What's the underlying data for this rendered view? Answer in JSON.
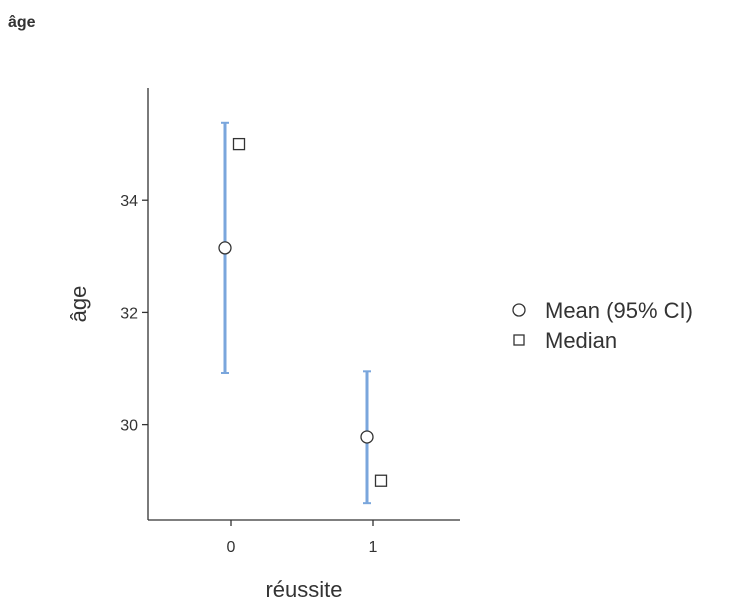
{
  "title": "âge",
  "chart_data": {
    "type": "scatter",
    "xlabel": "réussite",
    "ylabel": "âge",
    "categories": [
      "0",
      "1"
    ],
    "ylim": [
      28.3,
      36.0
    ],
    "yticks": [
      "30",
      "32",
      "34"
    ],
    "series": [
      {
        "name": "Mean (95% CI)",
        "marker": "circle",
        "values": [
          33.15,
          29.78
        ],
        "ci_lower": [
          30.92,
          28.6
        ],
        "ci_upper": [
          35.38,
          30.95
        ]
      },
      {
        "name": "Median",
        "marker": "square",
        "values": [
          35.0,
          29.0
        ]
      }
    ],
    "grid": false,
    "legend": "right",
    "colors": {
      "ci": "#7aa6dc",
      "marker_stroke": "#333333",
      "axis": "#333333"
    }
  }
}
